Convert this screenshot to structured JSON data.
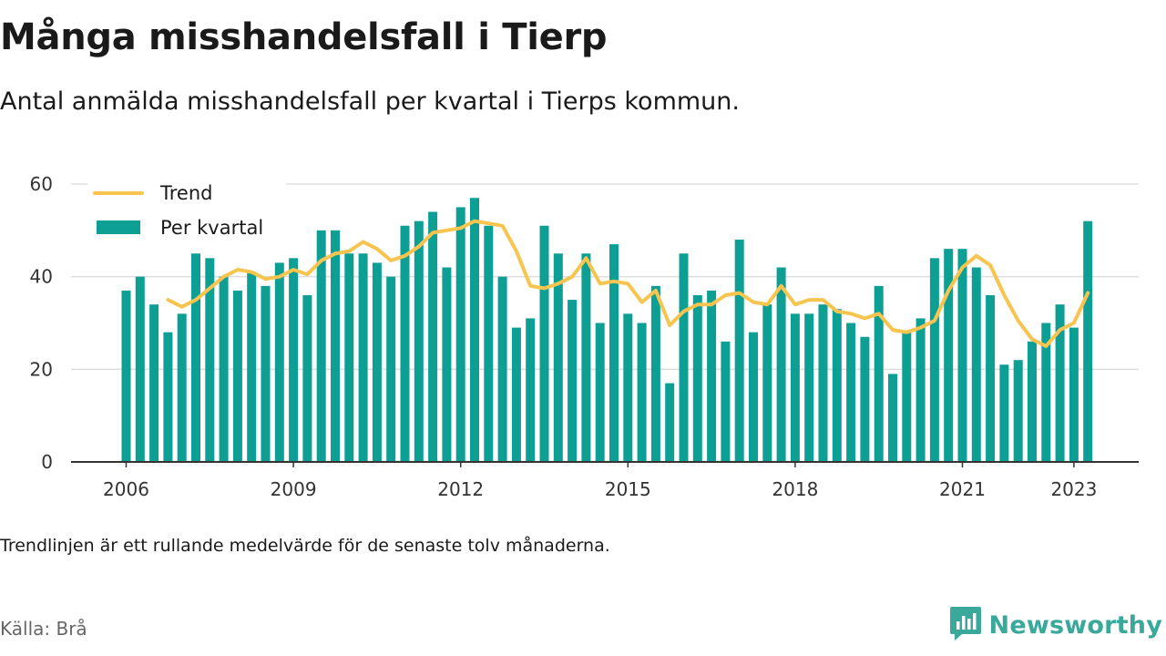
{
  "title": "Många misshandelsfall i Tierp",
  "subtitle": "Antal anmälda misshandelsfall per kvartal i Tierps kommun.",
  "note": "Trendlinjen är ett rullande medelvärde för de senaste tolv månaderna.",
  "source": "Källa: Brå",
  "brand": {
    "name": "Newsworthy",
    "icon": "bar-chart-speech-bubble-icon"
  },
  "colors": {
    "bars": "#0d9e94",
    "trend": "#f7c54f",
    "grid": "#dddddd",
    "axis": "#333333",
    "brand": "#3aa89b"
  },
  "chart_data": {
    "type": "bar",
    "categories": [
      "2006 Q1",
      "2006 Q2",
      "2006 Q3",
      "2006 Q4",
      "2007 Q1",
      "2007 Q2",
      "2007 Q3",
      "2007 Q4",
      "2008 Q1",
      "2008 Q2",
      "2008 Q3",
      "2008 Q4",
      "2009 Q1",
      "2009 Q2",
      "2009 Q3",
      "2009 Q4",
      "2010 Q1",
      "2010 Q2",
      "2010 Q3",
      "2010 Q4",
      "2011 Q1",
      "2011 Q2",
      "2011 Q3",
      "2011 Q4",
      "2012 Q1",
      "2012 Q2",
      "2012 Q3",
      "2012 Q4",
      "2013 Q1",
      "2013 Q2",
      "2013 Q3",
      "2013 Q4",
      "2014 Q1",
      "2014 Q2",
      "2014 Q3",
      "2014 Q4",
      "2015 Q1",
      "2015 Q2",
      "2015 Q3",
      "2015 Q4",
      "2016 Q1",
      "2016 Q2",
      "2016 Q3",
      "2016 Q4",
      "2017 Q1",
      "2017 Q2",
      "2017 Q3",
      "2017 Q4",
      "2018 Q1",
      "2018 Q2",
      "2018 Q3",
      "2018 Q4",
      "2019 Q1",
      "2019 Q2",
      "2019 Q3",
      "2019 Q4",
      "2020 Q1",
      "2020 Q2",
      "2020 Q3",
      "2020 Q4",
      "2021 Q1",
      "2021 Q2",
      "2021 Q3",
      "2021 Q4",
      "2022 Q1",
      "2022 Q2",
      "2022 Q3",
      "2022 Q4",
      "2023 Q1",
      "2023 Q2"
    ],
    "series": [
      {
        "name": "Per kvartal",
        "type": "bar",
        "values": [
          37,
          40,
          34,
          28,
          32,
          45,
          44,
          40,
          37,
          41,
          38,
          43,
          44,
          36,
          50,
          50,
          45,
          45,
          43,
          40,
          51,
          52,
          54,
          42,
          55,
          57,
          51,
          40,
          29,
          31,
          51,
          45,
          35,
          45,
          30,
          47,
          32,
          30,
          38,
          17,
          45,
          36,
          37,
          26,
          48,
          28,
          34,
          42,
          32,
          32,
          34,
          33,
          30,
          27,
          38,
          19,
          28,
          31,
          44,
          46,
          46,
          42,
          36,
          21,
          22,
          26,
          30,
          34,
          29,
          52
        ]
      },
      {
        "name": "Trend",
        "type": "line",
        "values": [
          null,
          null,
          null,
          35,
          33.5,
          35,
          37.5,
          40,
          41.5,
          41,
          39.5,
          40,
          41.5,
          40.5,
          43.5,
          45,
          45.5,
          47.5,
          46,
          43.5,
          44.5,
          46.5,
          49.5,
          50,
          50.5,
          52,
          51.5,
          51,
          45.5,
          38,
          37.5,
          38.5,
          40,
          44,
          38.5,
          39,
          38.5,
          34.5,
          37,
          29.5,
          32.5,
          34,
          34,
          36,
          36.5,
          34.5,
          34,
          38,
          34,
          35,
          35,
          32.5,
          32,
          31,
          32,
          28.5,
          28,
          29,
          30.5,
          37,
          42,
          44.5,
          42.5,
          36,
          30.5,
          26.5,
          25,
          28.5,
          30,
          36.5
        ]
      }
    ],
    "x_tick_labels": [
      "2006",
      "2009",
      "2012",
      "2015",
      "2018",
      "2021",
      "2023"
    ],
    "x_tick_categories": [
      "2006 Q1",
      "2009 Q1",
      "2012 Q1",
      "2015 Q1",
      "2018 Q1",
      "2021 Q1",
      "2023 Q1"
    ],
    "y_ticks": [
      0,
      20,
      40,
      60
    ],
    "ylim": [
      0,
      60
    ],
    "legend": {
      "placement": "top-left",
      "entries": [
        "Trend",
        "Per kvartal"
      ]
    },
    "grid": true,
    "xlabel": "",
    "ylabel": ""
  }
}
